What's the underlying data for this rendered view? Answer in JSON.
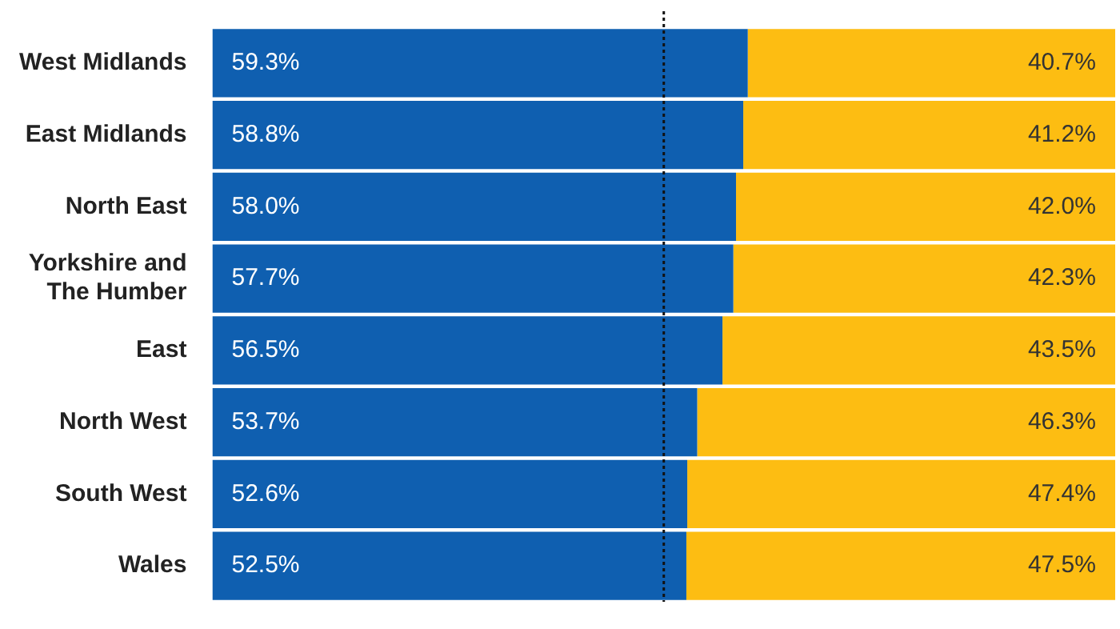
{
  "chart_data": {
    "type": "bar",
    "orientation": "horizontal",
    "stacked": true,
    "categories": [
      "West Midlands",
      "East Midlands",
      "North East",
      "Yorkshire and The Humber",
      "East",
      "North West",
      "South West",
      "Wales"
    ],
    "series": [
      {
        "color": "#0f5fb0",
        "values": [
          59.3,
          58.8,
          58.0,
          57.7,
          56.5,
          53.7,
          52.6,
          52.5
        ],
        "value_labels": [
          "59.3%",
          "58.8%",
          "58.0%",
          "57.7%",
          "56.5%",
          "53.7%",
          "52.6%",
          "52.5%"
        ]
      },
      {
        "color": "#fdbd12",
        "values": [
          40.7,
          41.2,
          42.0,
          42.3,
          43.5,
          46.3,
          47.4,
          47.5
        ],
        "value_labels": [
          "40.7%",
          "41.2%",
          "42.0%",
          "42.3%",
          "43.5%",
          "46.3%",
          "47.4%",
          "47.5%"
        ]
      }
    ],
    "xlim": [
      0,
      100
    ],
    "tick_labels": "y",
    "grid": false,
    "legend": false,
    "ref_lines": [
      {
        "axis": "x",
        "value": 50,
        "color": "#111111",
        "line_style": "dotted"
      }
    ]
  }
}
